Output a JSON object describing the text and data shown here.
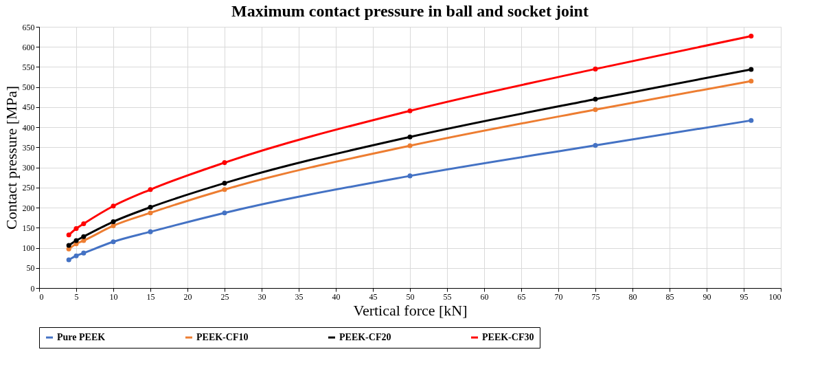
{
  "chart_data": {
    "type": "line",
    "title": "Maximum contact pressure in ball and socket joint",
    "xlabel": "Vertical force [kN]",
    "ylabel": "Contact pressure [MPa]",
    "x": [
      4,
      5,
      6,
      10,
      15,
      25,
      50,
      75,
      96
    ],
    "series": [
      {
        "name": "Pure PEEK",
        "color": "#4472c4",
        "values": [
          70,
          80,
          87,
          115,
          140,
          187,
          279,
          355,
          417
        ]
      },
      {
        "name": "PEEK-CF10",
        "color": "#ed7d31",
        "values": [
          97,
          110,
          118,
          155,
          187,
          245,
          354,
          444,
          515
        ]
      },
      {
        "name": "PEEK-CF20",
        "color": "#000000",
        "values": [
          106,
          118,
          128,
          165,
          201,
          261,
          376,
          470,
          544
        ]
      },
      {
        "name": "PEEK-CF30",
        "color": "#ff0000",
        "values": [
          132,
          148,
          160,
          204,
          245,
          312,
          441,
          545,
          627
        ]
      }
    ],
    "xlim": [
      0,
      100
    ],
    "xticks": [
      0,
      5,
      10,
      15,
      20,
      25,
      30,
      35,
      40,
      45,
      50,
      55,
      60,
      65,
      70,
      75,
      80,
      85,
      90,
      95,
      100
    ],
    "ylim": [
      0,
      650
    ],
    "yticks": [
      0,
      50,
      100,
      150,
      200,
      250,
      300,
      350,
      400,
      450,
      500,
      550,
      600,
      650
    ],
    "grid": true,
    "legend": "bottom",
    "marker": "circle",
    "line_style": "solid"
  }
}
